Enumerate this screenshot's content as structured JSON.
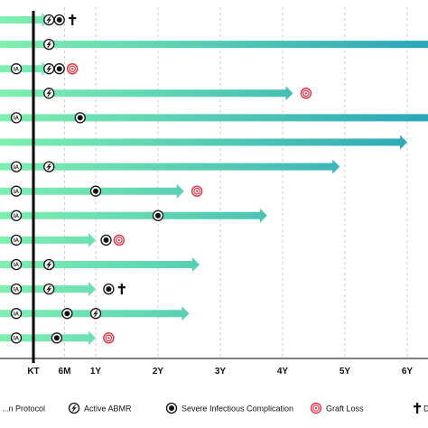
{
  "chart_data": {
    "type": "timeline",
    "title": "",
    "xlabel": "",
    "ylabel": "",
    "x_unit": "months",
    "xlim": [
      -2,
      80
    ],
    "ticks": [
      {
        "label": "KT",
        "value": 0
      },
      {
        "label": "6M",
        "value": 6
      },
      {
        "label": "1Y",
        "value": 12
      },
      {
        "label": "2Y",
        "value": 24
      },
      {
        "label": "3Y",
        "value": 36
      },
      {
        "label": "4Y",
        "value": 48
      },
      {
        "label": "5Y",
        "value": 60
      },
      {
        "label": "6Y",
        "value": 72
      }
    ],
    "grid": "vertical-dashed",
    "legend_position": "bottom",
    "legend": [
      {
        "symbol": "protocol",
        "label": "...n Protocol"
      },
      {
        "symbol": "abmr",
        "label": "Active ABMR"
      },
      {
        "symbol": "infection",
        "label": "Severe Infectious Complication"
      },
      {
        "symbol": "graft-loss",
        "label": "Graft Loss"
      },
      {
        "symbol": "death",
        "label": "De..."
      }
    ],
    "colors": {
      "arrow_start": "#7ff0b0",
      "arrow_end": "#2aa6b8",
      "graft_loss": "#e23a4a",
      "axis": "#000000"
    },
    "protocol_symbol_text": "IA",
    "patients": [
      {
        "end": 3,
        "events": [
          {
            "type": "abmr",
            "x": 3
          },
          {
            "type": "infection",
            "x": 5
          },
          {
            "type": "death",
            "x": 7.5
          }
        ]
      },
      {
        "end": 80,
        "events": [
          {
            "type": "abmr",
            "x": 3
          }
        ]
      },
      {
        "end": 3,
        "events": [
          {
            "type": "protocol",
            "x": -3.3
          },
          {
            "type": "abmr",
            "x": 3
          },
          {
            "type": "infection",
            "x": 5
          },
          {
            "type": "graft-loss",
            "x": 7.5
          }
        ]
      },
      {
        "end": 50,
        "events": [
          {
            "type": "abmr",
            "x": 3
          },
          {
            "type": "graft-loss",
            "x": 52.5
          }
        ]
      },
      {
        "end": 76,
        "events": [
          {
            "type": "protocol",
            "x": -3.3
          },
          {
            "type": "infection",
            "x": 9
          }
        ]
      },
      {
        "end": 72,
        "events": []
      },
      {
        "end": 59,
        "events": [
          {
            "type": "protocol",
            "x": -3.3
          },
          {
            "type": "abmr",
            "x": 3
          }
        ]
      },
      {
        "end": 29,
        "events": [
          {
            "type": "protocol",
            "x": -3.3
          },
          {
            "type": "infection",
            "x": 12
          },
          {
            "type": "graft-loss",
            "x": 31.5
          }
        ]
      },
      {
        "end": 45,
        "events": [
          {
            "type": "protocol",
            "x": -3.3
          },
          {
            "type": "infection",
            "x": 24
          }
        ]
      },
      {
        "end": 12,
        "events": [
          {
            "type": "protocol",
            "x": -3.3
          },
          {
            "type": "infection",
            "x": 14
          },
          {
            "type": "graft-loss",
            "x": 16.5
          }
        ]
      },
      {
        "end": 32,
        "events": [
          {
            "type": "protocol",
            "x": -3.3
          },
          {
            "type": "abmr",
            "x": 3
          }
        ]
      },
      {
        "end": 12,
        "events": [
          {
            "type": "protocol",
            "x": -3.3
          },
          {
            "type": "abmr",
            "x": 3
          },
          {
            "type": "infection",
            "x": 14.5
          },
          {
            "type": "death",
            "x": 17
          }
        ]
      },
      {
        "end": 30,
        "events": [
          {
            "type": "protocol",
            "x": -3.3
          },
          {
            "type": "infection",
            "x": 6.5
          },
          {
            "type": "abmr",
            "x": 12
          }
        ]
      },
      {
        "end": 12,
        "events": [
          {
            "type": "protocol",
            "x": -3.3
          },
          {
            "type": "infection",
            "x": 4.5
          },
          {
            "type": "graft-loss",
            "x": 14.5
          }
        ]
      }
    ]
  }
}
